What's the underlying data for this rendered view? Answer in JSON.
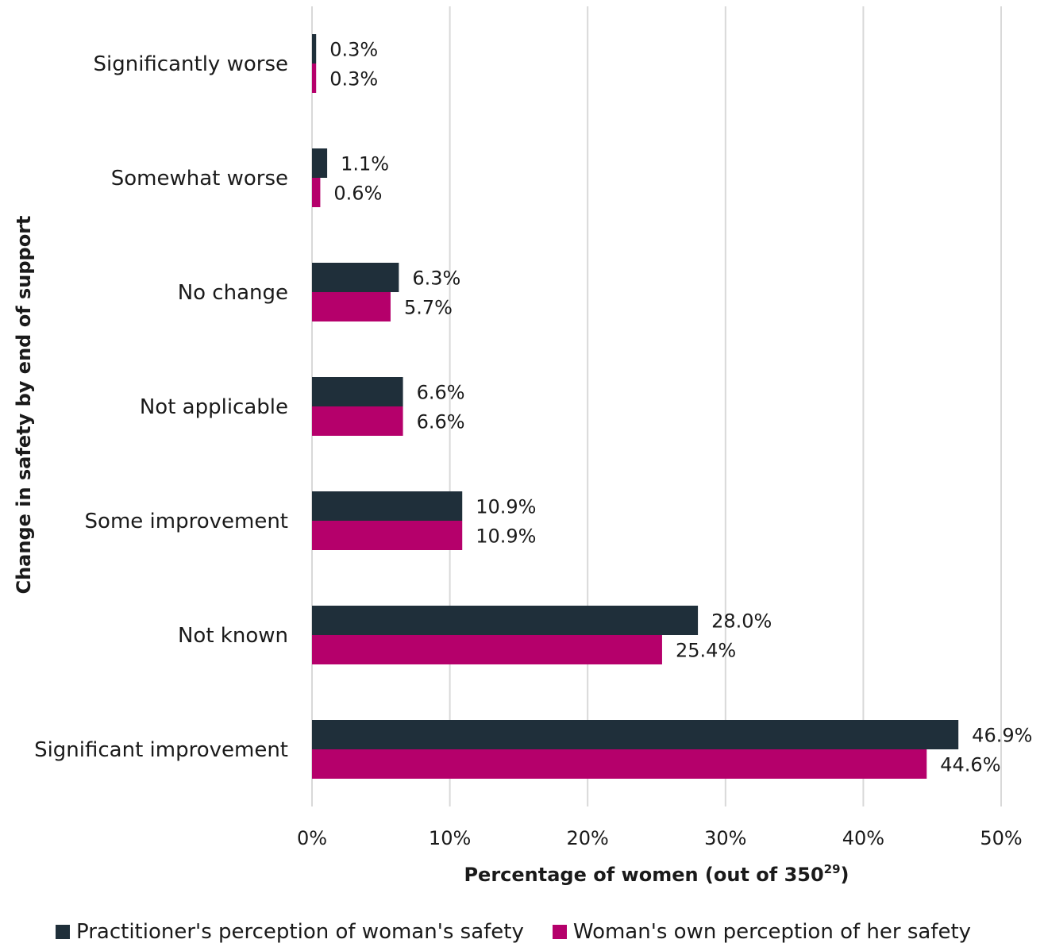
{
  "chart_data": {
    "type": "bar",
    "orientation": "horizontal",
    "categories": [
      "Significantly worse",
      "Somewhat worse",
      "No change",
      "Not applicable",
      "Some improvement",
      "Not known",
      "Significant improvement"
    ],
    "series": [
      {
        "name": "Practitioner's perception of woman's safety",
        "values": [
          0.3,
          1.1,
          6.3,
          6.6,
          10.9,
          28.0,
          46.9
        ],
        "labels": [
          "0.3%",
          "1.1%",
          "6.3%",
          "6.6%",
          "10.9%",
          "28.0%",
          "46.9%"
        ]
      },
      {
        "name": "Woman's own perception of her safety",
        "values": [
          0.3,
          0.6,
          5.7,
          6.6,
          10.9,
          25.4,
          44.6
        ],
        "labels": [
          "0.3%",
          "0.6%",
          "5.7%",
          "6.6%",
          "10.9%",
          "25.4%",
          "44.6%"
        ]
      }
    ],
    "xlabel": "Percentage of women (out of 350",
    "xlabel_superscript": "29",
    "xlabel_suffix": ")",
    "ylabel": "Change in safety by end of support",
    "xlim": [
      0,
      50
    ],
    "xticks": [
      0,
      10,
      20,
      30,
      40,
      50
    ],
    "xtick_labels": [
      "0%",
      "10%",
      "20%",
      "30%",
      "40%",
      "50%"
    ],
    "grid": "vertical",
    "legend_position": "bottom",
    "colors": [
      "#1f2f3a",
      "#b5006b"
    ]
  }
}
